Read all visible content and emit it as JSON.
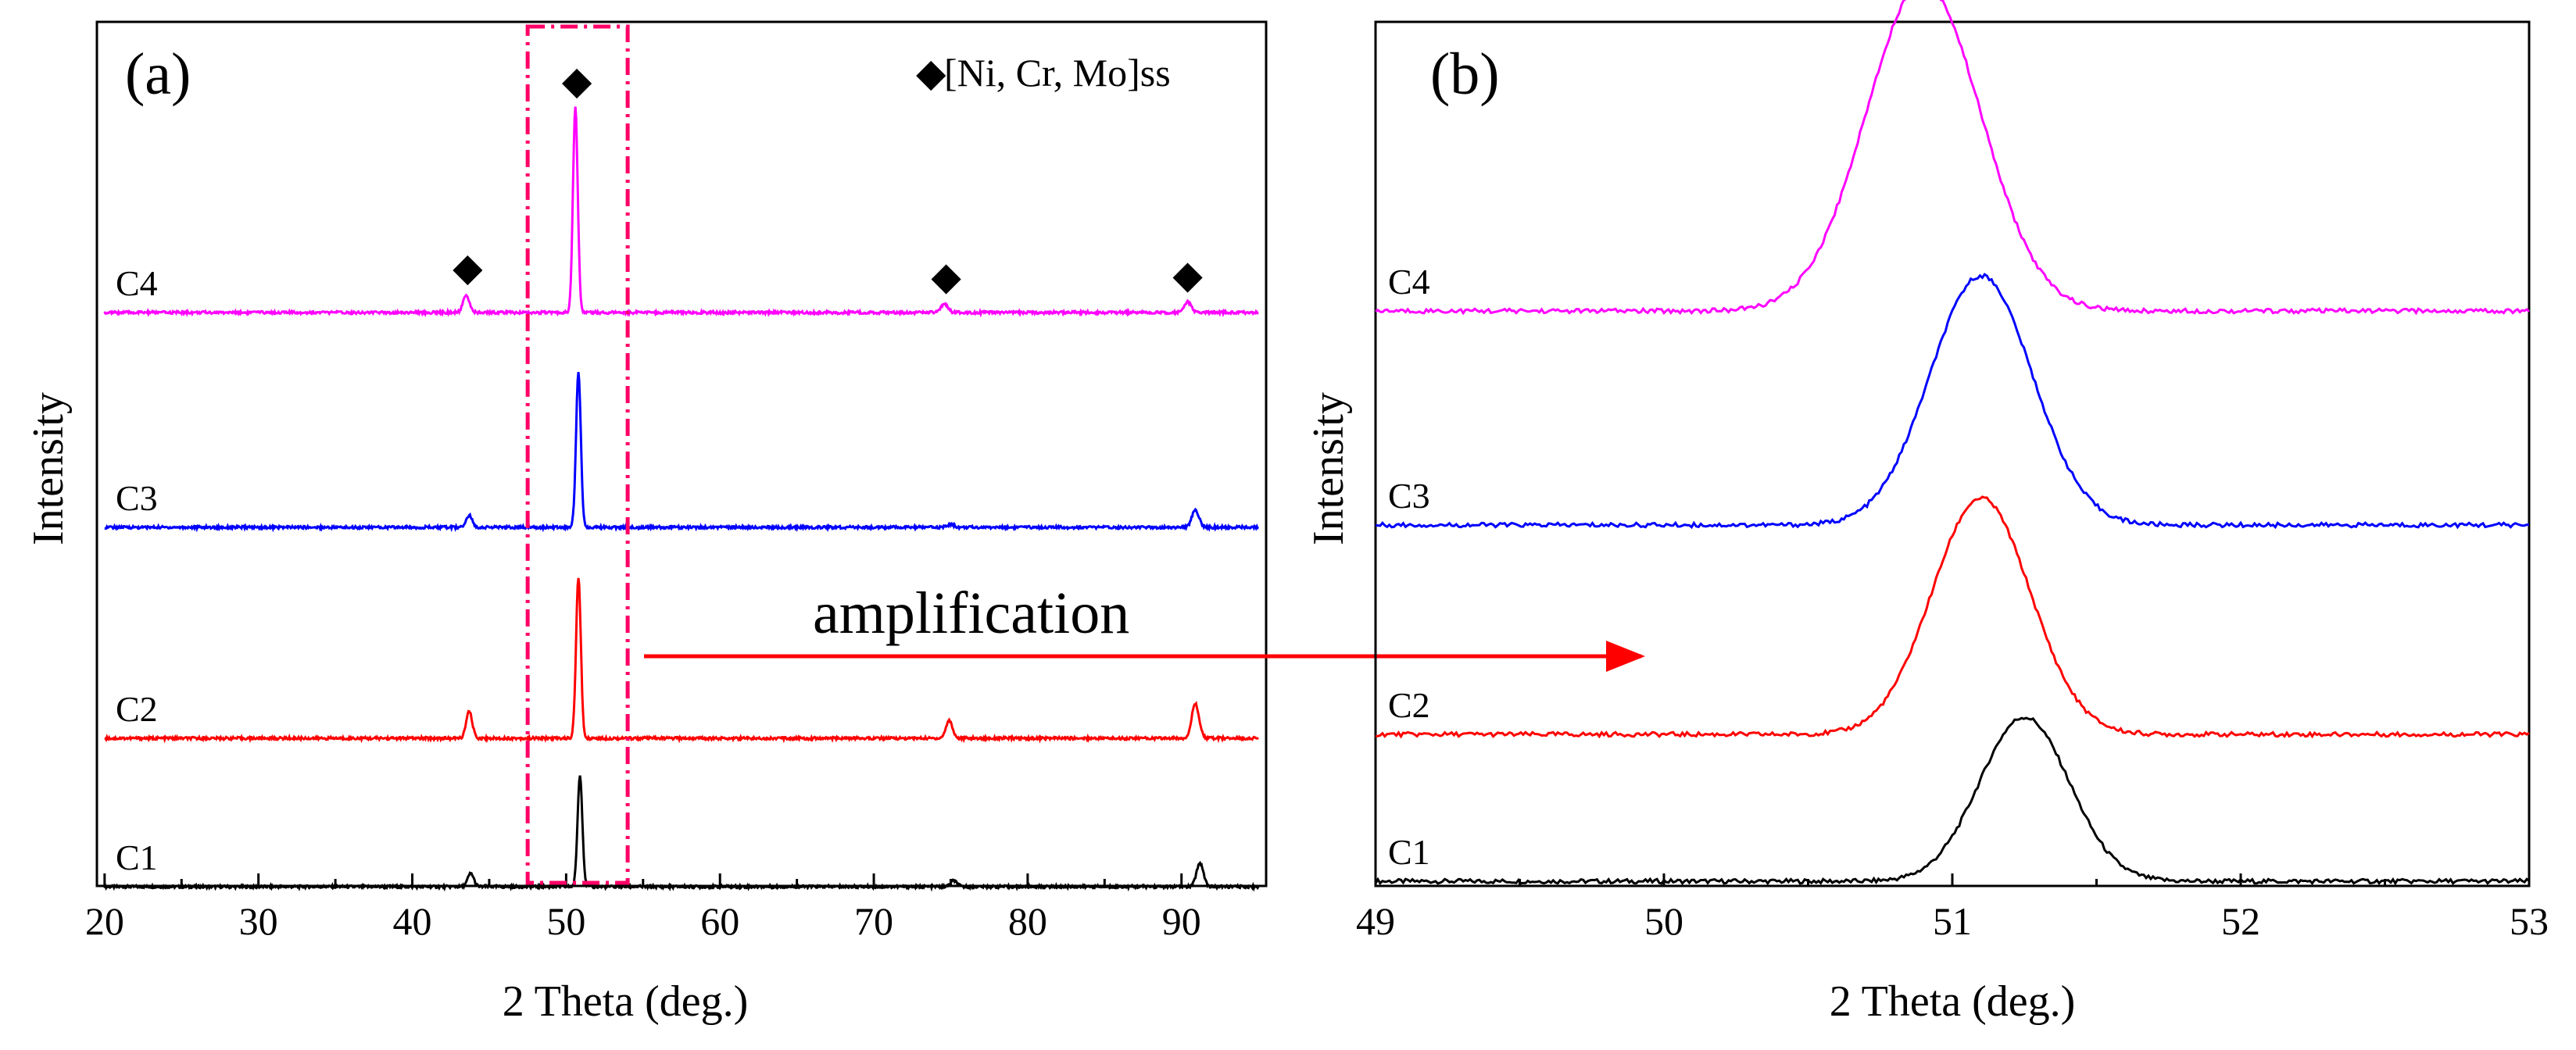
{
  "chart_data": [
    {
      "type": "line",
      "panel_label": "(a)",
      "xlabel": "2 Theta (deg.)",
      "ylabel": "Intensity",
      "xlim": [
        19.5,
        95.5
      ],
      "xticks": [
        20,
        30,
        40,
        50,
        60,
        70,
        80,
        90
      ],
      "legend": {
        "marker": "◆",
        "text": "[Ni, Cr, Mo]ss",
        "placement": "top-right"
      },
      "annotation": "amplification",
      "highlight_range": [
        47.5,
        54.0
      ],
      "marker_peaks": [
        43.6,
        50.7,
        74.7,
        90.4
      ],
      "series": [
        {
          "name": "C1",
          "color": "#000000",
          "baseline": 0.0,
          "peaks": [
            {
              "x": 43.8,
              "h": 0.09,
              "w": 0.28
            },
            {
              "x": 50.9,
              "h": 0.75,
              "w": 0.22
            },
            {
              "x": 75.2,
              "h": 0.04,
              "w": 0.3
            },
            {
              "x": 91.2,
              "h": 0.16,
              "w": 0.32
            }
          ]
        },
        {
          "name": "C2",
          "color": "#ff0000",
          "baseline": 1.0,
          "peaks": [
            {
              "x": 43.7,
              "h": 0.18,
              "w": 0.28
            },
            {
              "x": 50.8,
              "h": 1.08,
              "w": 0.22
            },
            {
              "x": 74.9,
              "h": 0.12,
              "w": 0.3
            },
            {
              "x": 90.9,
              "h": 0.23,
              "w": 0.34
            }
          ]
        },
        {
          "name": "C3",
          "color": "#0000ff",
          "baseline": 2.0,
          "peaks": [
            {
              "x": 43.7,
              "h": 0.08,
              "w": 0.28
            },
            {
              "x": 50.8,
              "h": 1.04,
              "w": 0.22
            },
            {
              "x": 75.0,
              "h": 0.02,
              "w": 0.3
            },
            {
              "x": 90.9,
              "h": 0.12,
              "w": 0.32
            }
          ]
        },
        {
          "name": "C4",
          "color": "#ff00ff",
          "baseline": 3.0,
          "peaks": [
            {
              "x": 43.5,
              "h": 0.12,
              "w": 0.28
            },
            {
              "x": 50.6,
              "h": 1.38,
              "w": 0.22
            },
            {
              "x": 74.6,
              "h": 0.06,
              "w": 0.3
            },
            {
              "x": 90.4,
              "h": 0.07,
              "w": 0.32
            }
          ]
        }
      ]
    },
    {
      "type": "line",
      "panel_label": "(b)",
      "xlabel": "2 Theta (deg.)",
      "ylabel": "Intensity",
      "xlim": [
        49,
        53
      ],
      "xticks": [
        49,
        50,
        51,
        52,
        53
      ],
      "series": [
        {
          "name": "C1",
          "color": "#000000",
          "baseline": 0.0,
          "peak_x": 51.25,
          "height": 0.75,
          "width": 0.22
        },
        {
          "name": "C2",
          "color": "#ff0000",
          "baseline": 1.0,
          "peak_x": 51.1,
          "height": 1.08,
          "width": 0.24
        },
        {
          "name": "C3",
          "color": "#0000ff",
          "baseline": 2.0,
          "peak_x": 51.1,
          "height": 1.14,
          "width": 0.25
        },
        {
          "name": "C4",
          "color": "#ff00ff",
          "baseline": 3.0,
          "peak_x": 50.9,
          "height": 1.5,
          "width": 0.28
        }
      ]
    }
  ]
}
